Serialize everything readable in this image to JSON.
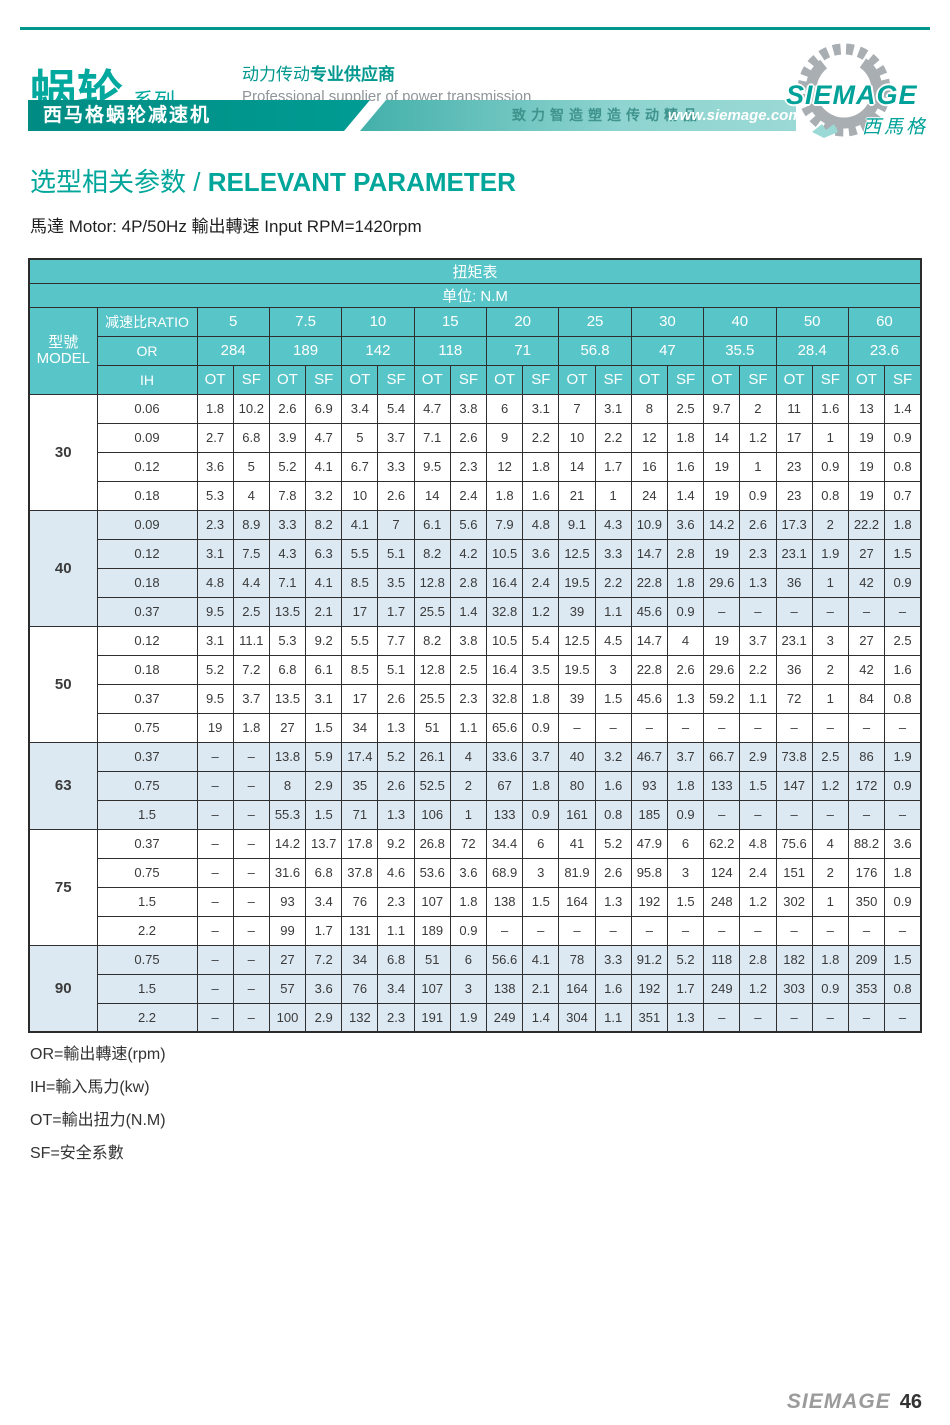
{
  "header": {
    "brand_cn": "蜗轮",
    "brand_series": "系列",
    "slogan_cn_regular": "动力传动",
    "slogan_cn_bold": "专业供应商",
    "slogan_en": "Professional supplier of power transmission",
    "banner_left": "西马格蜗轮减速机",
    "banner_motto": "致力智造塑造传动精品",
    "website": "www.siemage.com",
    "logo_text": "SIEMAGE",
    "logo_cn": "西馬格",
    "accent_teal": "#00978E",
    "banner_light_teal": "#8fd4d0",
    "header_cell_teal": "#58c5c8",
    "shaded_row_blue": "#dce9f2"
  },
  "title": {
    "cn": "选型相关参数",
    "sep": " / ",
    "en": "RELEVANT PARAMETER"
  },
  "motor_line": "馬達 Motor: 4P/50Hz  輸出轉速 Input RPM=1420rpm",
  "table": {
    "title": "扭矩表",
    "unit": "单位: N.M",
    "model_header_cn": "型號",
    "model_header_en": "MODEL",
    "ratio_label": "减速比RATIO",
    "or_label": "OR",
    "ih_label": "IH",
    "ot_label": "OT",
    "sf_label": "SF",
    "ratios": [
      "5",
      "7.5",
      "10",
      "15",
      "20",
      "25",
      "30",
      "40",
      "50",
      "60"
    ],
    "or_values": [
      "284",
      "189",
      "142",
      "118",
      "71",
      "56.8",
      "47",
      "35.5",
      "28.4",
      "23.6"
    ],
    "groups": [
      {
        "model": "30",
        "shaded": false,
        "rows": [
          {
            "ih": "0.06",
            "v": [
              "1.8",
              "10.2",
              "2.6",
              "6.9",
              "3.4",
              "5.4",
              "4.7",
              "3.8",
              "6",
              "3.1",
              "7",
              "3.1",
              "8",
              "2.5",
              "9.7",
              "2",
              "11",
              "1.6",
              "13",
              "1.4"
            ]
          },
          {
            "ih": "0.09",
            "v": [
              "2.7",
              "6.8",
              "3.9",
              "4.7",
              "5",
              "3.7",
              "7.1",
              "2.6",
              "9",
              "2.2",
              "10",
              "2.2",
              "12",
              "1.8",
              "14",
              "1.2",
              "17",
              "1",
              "19",
              "0.9"
            ]
          },
          {
            "ih": "0.12",
            "v": [
              "3.6",
              "5",
              "5.2",
              "4.1",
              "6.7",
              "3.3",
              "9.5",
              "2.3",
              "12",
              "1.8",
              "14",
              "1.7",
              "16",
              "1.6",
              "19",
              "1",
              "23",
              "0.9",
              "19",
              "0.8"
            ]
          },
          {
            "ih": "0.18",
            "v": [
              "5.3",
              "4",
              "7.8",
              "3.2",
              "10",
              "2.6",
              "14",
              "2.4",
              "1.8",
              "1.6",
              "21",
              "1",
              "24",
              "1.4",
              "19",
              "0.9",
              "23",
              "0.8",
              "19",
              "0.7"
            ]
          }
        ]
      },
      {
        "model": "40",
        "shaded": true,
        "rows": [
          {
            "ih": "0.09",
            "v": [
              "2.3",
              "8.9",
              "3.3",
              "8.2",
              "4.1",
              "7",
              "6.1",
              "5.6",
              "7.9",
              "4.8",
              "9.1",
              "4.3",
              "10.9",
              "3.6",
              "14.2",
              "2.6",
              "17.3",
              "2",
              "22.2",
              "1.8"
            ]
          },
          {
            "ih": "0.12",
            "v": [
              "3.1",
              "7.5",
              "4.3",
              "6.3",
              "5.5",
              "5.1",
              "8.2",
              "4.2",
              "10.5",
              "3.6",
              "12.5",
              "3.3",
              "14.7",
              "2.8",
              "19",
              "2.3",
              "23.1",
              "1.9",
              "27",
              "1.5"
            ]
          },
          {
            "ih": "0.18",
            "v": [
              "4.8",
              "4.4",
              "7.1",
              "4.1",
              "8.5",
              "3.5",
              "12.8",
              "2.8",
              "16.4",
              "2.4",
              "19.5",
              "2.2",
              "22.8",
              "1.8",
              "29.6",
              "1.3",
              "36",
              "1",
              "42",
              "0.9"
            ]
          },
          {
            "ih": "0.37",
            "v": [
              "9.5",
              "2.5",
              "13.5",
              "2.1",
              "17",
              "1.7",
              "25.5",
              "1.4",
              "32.8",
              "1.2",
              "39",
              "1.1",
              "45.6",
              "0.9",
              "–",
              "–",
              "–",
              "–",
              "–",
              "–"
            ]
          }
        ]
      },
      {
        "model": "50",
        "shaded": false,
        "rows": [
          {
            "ih": "0.12",
            "v": [
              "3.1",
              "11.1",
              "5.3",
              "9.2",
              "5.5",
              "7.7",
              "8.2",
              "3.8",
              "10.5",
              "5.4",
              "12.5",
              "4.5",
              "14.7",
              "4",
              "19",
              "3.7",
              "23.1",
              "3",
              "27",
              "2.5"
            ]
          },
          {
            "ih": "0.18",
            "v": [
              "5.2",
              "7.2",
              "6.8",
              "6.1",
              "8.5",
              "5.1",
              "12.8",
              "2.5",
              "16.4",
              "3.5",
              "19.5",
              "3",
              "22.8",
              "2.6",
              "29.6",
              "2.2",
              "36",
              "2",
              "42",
              "1.6"
            ]
          },
          {
            "ih": "0.37",
            "v": [
              "9.5",
              "3.7",
              "13.5",
              "3.1",
              "17",
              "2.6",
              "25.5",
              "2.3",
              "32.8",
              "1.8",
              "39",
              "1.5",
              "45.6",
              "1.3",
              "59.2",
              "1.1",
              "72",
              "1",
              "84",
              "0.8"
            ]
          },
          {
            "ih": "0.75",
            "v": [
              "19",
              "1.8",
              "27",
              "1.5",
              "34",
              "1.3",
              "51",
              "1.1",
              "65.6",
              "0.9",
              "–",
              "–",
              "–",
              "–",
              "–",
              "–",
              "–",
              "–",
              "–",
              "–"
            ]
          }
        ]
      },
      {
        "model": "63",
        "shaded": true,
        "rows": [
          {
            "ih": "0.37",
            "v": [
              "–",
              "–",
              "13.8",
              "5.9",
              "17.4",
              "5.2",
              "26.1",
              "4",
              "33.6",
              "3.7",
              "40",
              "3.2",
              "46.7",
              "3.7",
              "66.7",
              "2.9",
              "73.8",
              "2.5",
              "86",
              "1.9"
            ]
          },
          {
            "ih": "0.75",
            "v": [
              "–",
              "–",
              "8",
              "2.9",
              "35",
              "2.6",
              "52.5",
              "2",
              "67",
              "1.8",
              "80",
              "1.6",
              "93",
              "1.8",
              "133",
              "1.5",
              "147",
              "1.2",
              "172",
              "0.9"
            ]
          },
          {
            "ih": "1.5",
            "v": [
              "–",
              "–",
              "55.3",
              "1.5",
              "71",
              "1.3",
              "106",
              "1",
              "133",
              "0.9",
              "161",
              "0.8",
              "185",
              "0.9",
              "–",
              "–",
              "–",
              "–",
              "–",
              "–"
            ]
          }
        ]
      },
      {
        "model": "75",
        "shaded": false,
        "rows": [
          {
            "ih": "0.37",
            "v": [
              "–",
              "–",
              "14.2",
              "13.7",
              "17.8",
              "9.2",
              "26.8",
              "72",
              "34.4",
              "6",
              "41",
              "5.2",
              "47.9",
              "6",
              "62.2",
              "4.8",
              "75.6",
              "4",
              "88.2",
              "3.6"
            ]
          },
          {
            "ih": "0.75",
            "v": [
              "–",
              "–",
              "31.6",
              "6.8",
              "37.8",
              "4.6",
              "53.6",
              "3.6",
              "68.9",
              "3",
              "81.9",
              "2.6",
              "95.8",
              "3",
              "124",
              "2.4",
              "151",
              "2",
              "176",
              "1.8"
            ]
          },
          {
            "ih": "1.5",
            "v": [
              "–",
              "–",
              "93",
              "3.4",
              "76",
              "2.3",
              "107",
              "1.8",
              "138",
              "1.5",
              "164",
              "1.3",
              "192",
              "1.5",
              "248",
              "1.2",
              "302",
              "1",
              "350",
              "0.9"
            ]
          },
          {
            "ih": "2.2",
            "v": [
              "–",
              "–",
              "99",
              "1.7",
              "131",
              "1.1",
              "189",
              "0.9",
              "–",
              "–",
              "–",
              "–",
              "–",
              "–",
              "–",
              "–",
              "–",
              "–",
              "–",
              "–"
            ]
          }
        ]
      },
      {
        "model": "90",
        "shaded": true,
        "rows": [
          {
            "ih": "0.75",
            "v": [
              "–",
              "–",
              "27",
              "7.2",
              "34",
              "6.8",
              "51",
              "6",
              "56.6",
              "4.1",
              "78",
              "3.3",
              "91.2",
              "5.2",
              "118",
              "2.8",
              "182",
              "1.8",
              "209",
              "1.5"
            ]
          },
          {
            "ih": "1.5",
            "v": [
              "–",
              "–",
              "57",
              "3.6",
              "76",
              "3.4",
              "107",
              "3",
              "138",
              "2.1",
              "164",
              "1.6",
              "192",
              "1.7",
              "249",
              "1.2",
              "303",
              "0.9",
              "353",
              "0.8"
            ]
          },
          {
            "ih": "2.2",
            "v": [
              "–",
              "–",
              "100",
              "2.9",
              "132",
              "2.3",
              "191",
              "1.9",
              "249",
              "1.4",
              "304",
              "1.1",
              "351",
              "1.3",
              "–",
              "–",
              "–",
              "–",
              "–",
              "–"
            ]
          }
        ]
      }
    ]
  },
  "notes": [
    "OR=輸出轉速(rpm)",
    "IH=輸入馬力(kw)",
    "OT=輸出扭力(N.M)",
    "SF=安全系數"
  ],
  "footer": {
    "logo": "SIEMAGE",
    "page": "46"
  }
}
